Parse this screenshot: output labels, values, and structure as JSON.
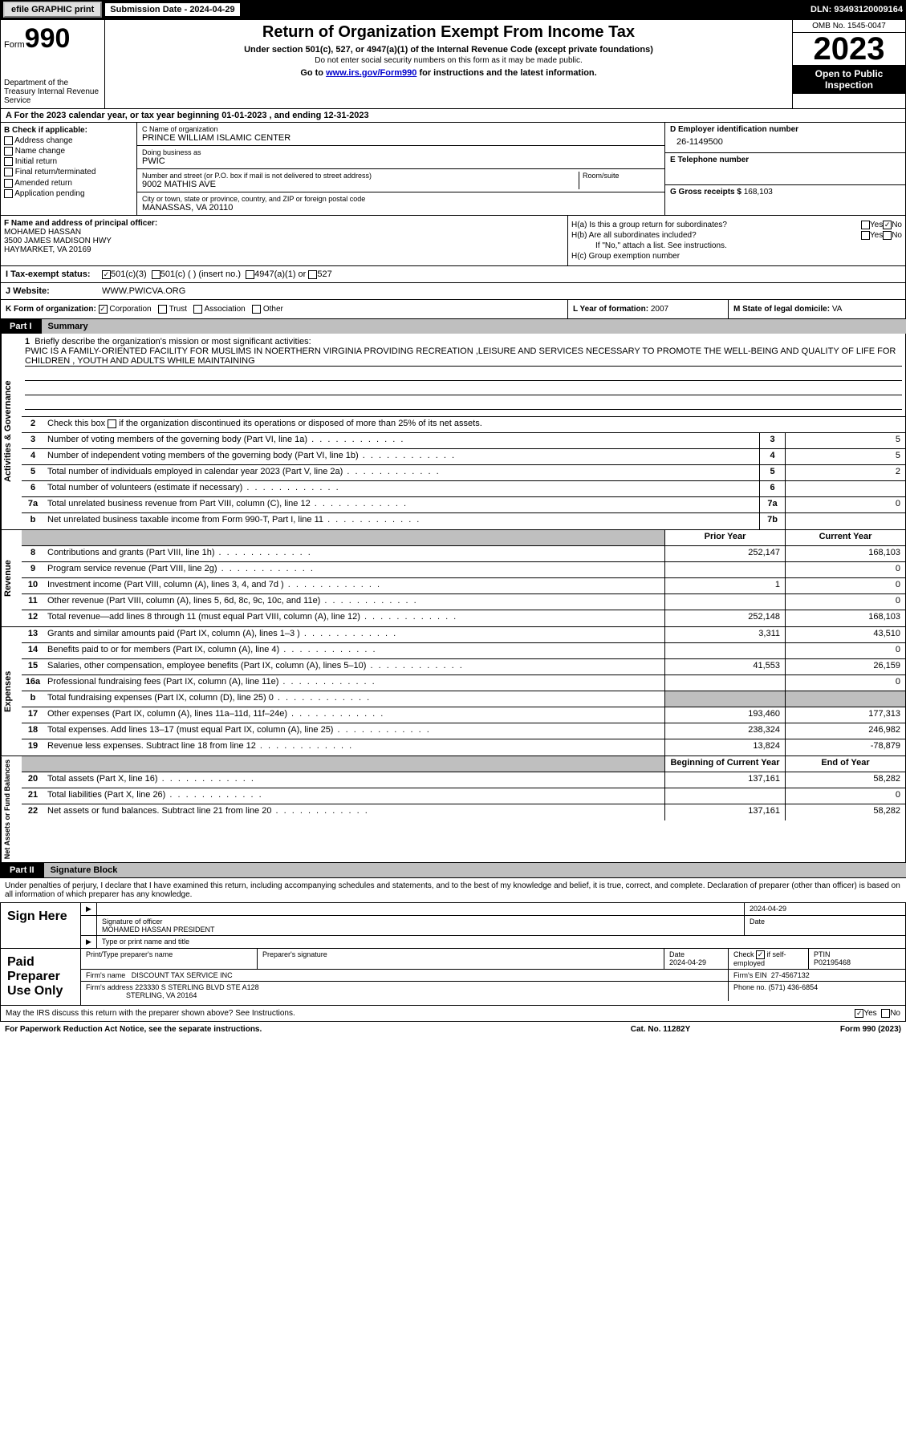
{
  "topbar": {
    "efile": "efile GRAPHIC print",
    "submission_label": "Submission Date - 2024-04-29",
    "dln": "DLN: 93493120009164"
  },
  "header": {
    "form_prefix": "Form",
    "form_num": "990",
    "dept": "Department of the Treasury\nInternal Revenue Service",
    "title": "Return of Organization Exempt From Income Tax",
    "sub1": "Under section 501(c), 527, or 4947(a)(1) of the Internal Revenue Code (except private foundations)",
    "sub2": "Do not enter social security numbers on this form as it may be made public.",
    "sub3_pre": "Go to ",
    "sub3_link": "www.irs.gov/Form990",
    "sub3_post": " for instructions and the latest information.",
    "omb": "OMB No. 1545-0047",
    "year": "2023",
    "inspection": "Open to Public Inspection"
  },
  "row_a": "A For the 2023 calendar year, or tax year beginning 01-01-2023   , and ending 12-31-2023",
  "col_b": {
    "hdr": "B Check if applicable:",
    "items": [
      "Address change",
      "Name change",
      "Initial return",
      "Final return/terminated",
      "Amended return",
      "Application pending"
    ]
  },
  "col_c": {
    "name_lbl": "C Name of organization",
    "name": "PRINCE WILLIAM ISLAMIC CENTER",
    "dba_lbl": "Doing business as",
    "dba": "PWIC",
    "addr_lbl": "Number and street (or P.O. box if mail is not delivered to street address)",
    "addr": "9002 MATHIS AVE",
    "room_lbl": "Room/suite",
    "city_lbl": "City or town, state or province, country, and ZIP or foreign postal code",
    "city": "MANASSAS, VA  20110"
  },
  "col_de": {
    "d_lbl": "D Employer identification number",
    "d_val": "26-1149500",
    "e_lbl": "E Telephone number",
    "g_lbl": "G Gross receipts $",
    "g_val": "168,103"
  },
  "row_f": {
    "lbl": "F  Name and address of principal officer:",
    "name": "MOHAMED HASSAN",
    "addr1": "3500 JAMES MADISON HWY",
    "addr2": "HAYMARKET, VA  20169"
  },
  "row_h": {
    "ha": "H(a)  Is this a group return for subordinates?",
    "hb": "H(b)  Are all subordinates included?",
    "hb_note": "If \"No,\" attach a list. See instructions.",
    "hc": "H(c)  Group exemption number",
    "yes": "Yes",
    "no": "No"
  },
  "row_i": {
    "lbl": "I  Tax-exempt status:",
    "c3": "501(c)(3)",
    "cins": "501(c) (  ) (insert no.)",
    "a1": "4947(a)(1) or",
    "s527": "527"
  },
  "row_j": {
    "lbl": "J  Website:",
    "val": "WWW.PWICVA.ORG"
  },
  "row_k": {
    "lbl": "K Form of organization:",
    "corp": "Corporation",
    "trust": "Trust",
    "assoc": "Association",
    "other": "Other"
  },
  "row_l": {
    "lbl": "L Year of formation:",
    "val": "2007"
  },
  "row_m": {
    "lbl": "M State of legal domicile:",
    "val": "VA"
  },
  "part1": {
    "num": "Part I",
    "title": "Summary"
  },
  "section_labels": {
    "ag": "Activities & Governance",
    "rev": "Revenue",
    "exp": "Expenses",
    "na": "Net Assets or\nFund Balances"
  },
  "mission": {
    "lbl": "Briefly describe the organization's mission or most significant activities:",
    "text": "PWIC IS A FAMILY-ORIENTED FACILITY FOR MUSLIMS IN NOERTHERN VIRGINIA PROVIDING RECREATION ,LEISURE AND SERVICES NECESSARY TO PROMOTE THE WELL-BEING AND QUALITY OF LIFE FOR CHILDREN , YOUTH AND ADULTS WHILE MAINTAINING"
  },
  "line2": "Check this box      if the organization discontinued its operations or disposed of more than 25% of its net assets.",
  "ag_rows": [
    {
      "n": "3",
      "d": "Number of voting members of the governing body (Part VI, line 1a)",
      "nb": "3",
      "v": "5"
    },
    {
      "n": "4",
      "d": "Number of independent voting members of the governing body (Part VI, line 1b)",
      "nb": "4",
      "v": "5"
    },
    {
      "n": "5",
      "d": "Total number of individuals employed in calendar year 2023 (Part V, line 2a)",
      "nb": "5",
      "v": "2"
    },
    {
      "n": "6",
      "d": "Total number of volunteers (estimate if necessary)",
      "nb": "6",
      "v": ""
    },
    {
      "n": "7a",
      "d": "Total unrelated business revenue from Part VIII, column (C), line 12",
      "nb": "7a",
      "v": "0"
    },
    {
      "n": "b",
      "d": "Net unrelated business taxable income from Form 990-T, Part I, line 11",
      "nb": "7b",
      "v": ""
    }
  ],
  "col_hdrs": {
    "prior": "Prior Year",
    "current": "Current Year",
    "beg": "Beginning of Current Year",
    "end": "End of Year"
  },
  "rev_rows": [
    {
      "n": "8",
      "d": "Contributions and grants (Part VIII, line 1h)",
      "p": "252,147",
      "c": "168,103"
    },
    {
      "n": "9",
      "d": "Program service revenue (Part VIII, line 2g)",
      "p": "",
      "c": "0"
    },
    {
      "n": "10",
      "d": "Investment income (Part VIII, column (A), lines 3, 4, and 7d )",
      "p": "1",
      "c": "0"
    },
    {
      "n": "11",
      "d": "Other revenue (Part VIII, column (A), lines 5, 6d, 8c, 9c, 10c, and 11e)",
      "p": "",
      "c": "0"
    },
    {
      "n": "12",
      "d": "Total revenue—add lines 8 through 11 (must equal Part VIII, column (A), line 12)",
      "p": "252,148",
      "c": "168,103"
    }
  ],
  "exp_rows": [
    {
      "n": "13",
      "d": "Grants and similar amounts paid (Part IX, column (A), lines 1–3 )",
      "p": "3,311",
      "c": "43,510"
    },
    {
      "n": "14",
      "d": "Benefits paid to or for members (Part IX, column (A), line 4)",
      "p": "",
      "c": "0"
    },
    {
      "n": "15",
      "d": "Salaries, other compensation, employee benefits (Part IX, column (A), lines 5–10)",
      "p": "41,553",
      "c": "26,159"
    },
    {
      "n": "16a",
      "d": "Professional fundraising fees (Part IX, column (A), line 11e)",
      "p": "",
      "c": "0"
    },
    {
      "n": "b",
      "d": "Total fundraising expenses (Part IX, column (D), line 25) 0",
      "p": "GREY",
      "c": "GREY"
    },
    {
      "n": "17",
      "d": "Other expenses (Part IX, column (A), lines 11a–11d, 11f–24e)",
      "p": "193,460",
      "c": "177,313"
    },
    {
      "n": "18",
      "d": "Total expenses. Add lines 13–17 (must equal Part IX, column (A), line 25)",
      "p": "238,324",
      "c": "246,982"
    },
    {
      "n": "19",
      "d": "Revenue less expenses. Subtract line 18 from line 12",
      "p": "13,824",
      "c": "-78,879"
    }
  ],
  "na_rows": [
    {
      "n": "20",
      "d": "Total assets (Part X, line 16)",
      "p": "137,161",
      "c": "58,282"
    },
    {
      "n": "21",
      "d": "Total liabilities (Part X, line 26)",
      "p": "",
      "c": "0"
    },
    {
      "n": "22",
      "d": "Net assets or fund balances. Subtract line 21 from line 20",
      "p": "137,161",
      "c": "58,282"
    }
  ],
  "part2": {
    "num": "Part II",
    "title": "Signature Block"
  },
  "sig_intro": "Under penalties of perjury, I declare that I have examined this return, including accompanying schedules and statements, and to the best of my knowledge and belief, it is true, correct, and complete. Declaration of preparer (other than officer) is based on all information of which preparer has any knowledge.",
  "sign_here": {
    "lbl": "Sign Here",
    "sig_lbl": "Signature of officer",
    "date_val": "2024-04-29",
    "date_lbl": "Date",
    "name": "MOHAMED HASSAN  PRESIDENT",
    "name_lbl": "Type or print name and title"
  },
  "paid": {
    "lbl": "Paid Preparer Use Only",
    "h1": "Print/Type preparer's name",
    "h2": "Preparer's signature",
    "h3_lbl": "Date",
    "h3_val": "2024-04-29",
    "h4_pre": "Check",
    "h4_post": "if self-employed",
    "h5_lbl": "PTIN",
    "h5_val": "P02195468",
    "firm_lbl": "Firm's name",
    "firm": "DISCOUNT TAX SERVICE INC",
    "ein_lbl": "Firm's EIN",
    "ein": "27-4567132",
    "addr_lbl": "Firm's address",
    "addr1": "223330 S STERLING BLVD STE A128",
    "addr2": "STERLING, VA  20164",
    "phone_lbl": "Phone no.",
    "phone": "(571) 436-6854"
  },
  "irs_q": "May the IRS discuss this return with the preparer shown above? See Instructions.",
  "footer": {
    "f1": "For Paperwork Reduction Act Notice, see the separate instructions.",
    "f2": "Cat. No. 11282Y",
    "f3": "Form 990 (2023)"
  }
}
